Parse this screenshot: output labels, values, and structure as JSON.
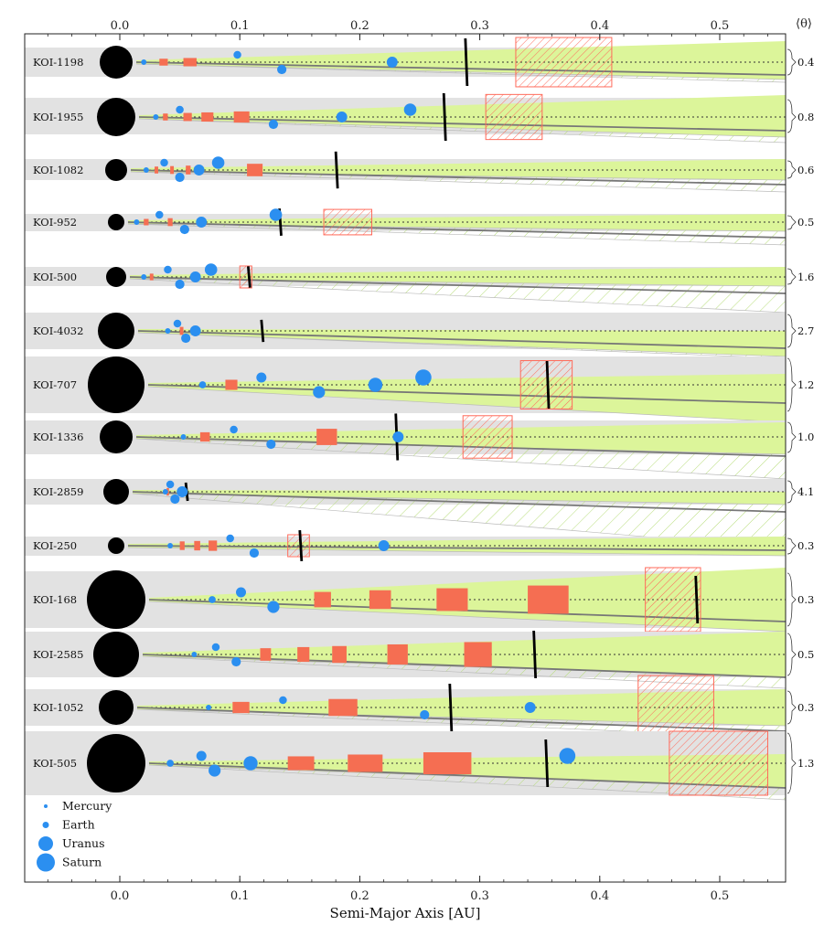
{
  "chart_data": {
    "type": "scatter",
    "title": "",
    "xlabel": "Semi-Major Axis [AU]",
    "ylabel": "",
    "xlim": [
      -0.08,
      0.56
    ],
    "xticks": [
      "0.0",
      "0.1",
      "0.2",
      "0.3",
      "0.4",
      "0.5"
    ],
    "xtick_values": [
      0.0,
      0.1,
      0.2,
      0.3,
      0.4,
      0.5
    ],
    "right_axis_label": "⟨θ⟩",
    "grid": false,
    "legend": {
      "position": "bottom-left",
      "entries": [
        "Mercury",
        "Earth",
        "Uranus",
        "Saturn"
      ]
    },
    "colors": {
      "planet": "#2b8ff0",
      "star": "#000000",
      "band": "#dcf59a",
      "row_bg": "#e2e2e2",
      "gap": "#f56e52",
      "hatch": "#ff6a5a",
      "hatch_green": "#b7dd7a"
    },
    "systems": [
      {
        "name": "KOI-1198",
        "theta": "0.4",
        "planets": [
          0.02,
          0.098,
          0.135,
          0.227
        ],
        "gaps": [
          [
            0.033,
            0.04
          ],
          [
            0.053,
            0.064
          ]
        ],
        "hz": [
          0.33,
          0.41
        ],
        "edge": 0.288
      },
      {
        "name": "KOI-1955",
        "theta": "0.8",
        "planets": [
          0.03,
          0.05,
          0.128,
          0.185,
          0.242
        ],
        "gaps": [
          [
            0.036,
            0.04
          ],
          [
            0.053,
            0.06
          ],
          [
            0.068,
            0.078
          ],
          [
            0.095,
            0.108
          ]
        ],
        "hz": [
          0.305,
          0.352
        ],
        "edge": 0.27
      },
      {
        "name": "KOI-1082",
        "theta": "0.6",
        "planets": [
          0.022,
          0.037,
          0.05,
          0.066,
          0.082
        ],
        "gaps": [
          [
            0.029,
            0.032
          ],
          [
            0.042,
            0.045
          ],
          [
            0.055,
            0.059
          ],
          [
            0.106,
            0.119
          ]
        ],
        "hz": null,
        "edge": 0.18
      },
      {
        "name": "KOI-952",
        "theta": "0.5",
        "planets": [
          0.014,
          0.033,
          0.054,
          0.068,
          0.13
        ],
        "gaps": [
          [
            0.02,
            0.024
          ],
          [
            0.04,
            0.044
          ]
        ],
        "hz": [
          0.17,
          0.21
        ],
        "edge": 0.133
      },
      {
        "name": "KOI-500",
        "theta": "1.6",
        "planets": [
          0.02,
          0.04,
          0.05,
          0.063,
          0.076
        ],
        "gaps": [
          [
            0.025,
            0.028
          ]
        ],
        "hz": [
          0.1,
          0.11
        ],
        "edge": 0.107
      },
      {
        "name": "KOI-4032",
        "theta": "2.7",
        "planets": [
          0.04,
          0.048,
          0.055,
          0.063
        ],
        "gaps": [
          [
            0.05,
            0.053
          ]
        ],
        "hz": null,
        "edge": 0.118
      },
      {
        "name": "KOI-707",
        "theta": "1.2",
        "planets": [
          0.069,
          0.118,
          0.166,
          0.213,
          0.253
        ],
        "gaps": [
          [
            0.088,
            0.098
          ]
        ],
        "hz": [
          0.334,
          0.377
        ],
        "edge": 0.356
      },
      {
        "name": "KOI-1336",
        "theta": "1.0",
        "planets": [
          0.053,
          0.095,
          0.126,
          0.232
        ],
        "gaps": [
          [
            0.067,
            0.075
          ],
          [
            0.164,
            0.181
          ]
        ],
        "hz": [
          0.286,
          0.327
        ],
        "edge": 0.23
      },
      {
        "name": "KOI-2859",
        "theta": "4.1",
        "planets": [
          0.038,
          0.042,
          0.046,
          0.052
        ],
        "gaps": [
          [
            0.039,
            0.041
          ]
        ],
        "hz": null,
        "edge": 0.055
      },
      {
        "name": "KOI-250",
        "theta": "0.3",
        "planets": [
          0.042,
          0.092,
          0.112,
          0.22
        ],
        "gaps": [
          [
            0.05,
            0.054
          ],
          [
            0.062,
            0.067
          ],
          [
            0.074,
            0.081
          ]
        ],
        "hz": [
          0.14,
          0.158
        ],
        "edge": 0.15
      },
      {
        "name": "KOI-168",
        "theta": "0.3",
        "planets": [
          0.077,
          0.101,
          0.128
        ],
        "gaps": [
          [
            0.162,
            0.176
          ],
          [
            0.208,
            0.226
          ],
          [
            0.264,
            0.29
          ],
          [
            0.34,
            0.374
          ]
        ],
        "hz": [
          0.438,
          0.484
        ],
        "edge": 0.48
      },
      {
        "name": "KOI-2585",
        "theta": "0.5",
        "planets": [
          0.062,
          0.08,
          0.097
        ],
        "gaps": [
          [
            0.117,
            0.126
          ],
          [
            0.148,
            0.158
          ],
          [
            0.177,
            0.189
          ],
          [
            0.223,
            0.24
          ],
          [
            0.287,
            0.31
          ]
        ],
        "hz": null,
        "edge": 0.345
      },
      {
        "name": "KOI-1052",
        "theta": "0.3",
        "planets": [
          0.074,
          0.136,
          0.254,
          0.342
        ],
        "gaps": [
          [
            0.094,
            0.108
          ],
          [
            0.174,
            0.198
          ]
        ],
        "hz": [
          0.432,
          0.495
        ],
        "edge": 0.275
      },
      {
        "name": "KOI-505",
        "theta": "1.3",
        "planets": [
          0.042,
          0.068,
          0.079,
          0.109,
          0.373
        ],
        "gaps": [
          [
            0.14,
            0.162
          ],
          [
            0.19,
            0.219
          ],
          [
            0.253,
            0.293
          ]
        ],
        "hz": [
          0.458,
          0.54
        ],
        "edge": 0.355
      }
    ]
  }
}
